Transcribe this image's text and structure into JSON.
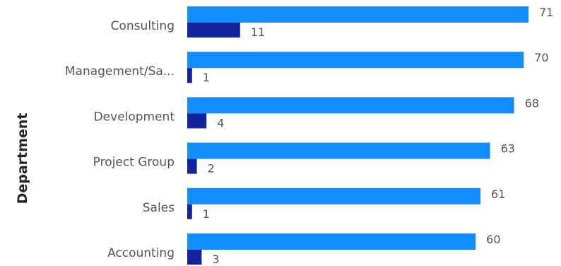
{
  "chart_data": {
    "type": "bar",
    "orientation": "horizontal",
    "ylabel": "Department",
    "categories": [
      "Consulting",
      "Management/Sa...",
      "Development",
      "Project Group",
      "Sales",
      "Accounting"
    ],
    "series": [
      {
        "values": [
          71,
          70,
          68,
          63,
          61,
          60
        ]
      },
      {
        "values": [
          11,
          1,
          4,
          2,
          1,
          3
        ]
      }
    ],
    "xlim": [
      0,
      71
    ],
    "grid": false,
    "legend": "none",
    "colors": [
      "#118DFF",
      "#12239E"
    ]
  }
}
